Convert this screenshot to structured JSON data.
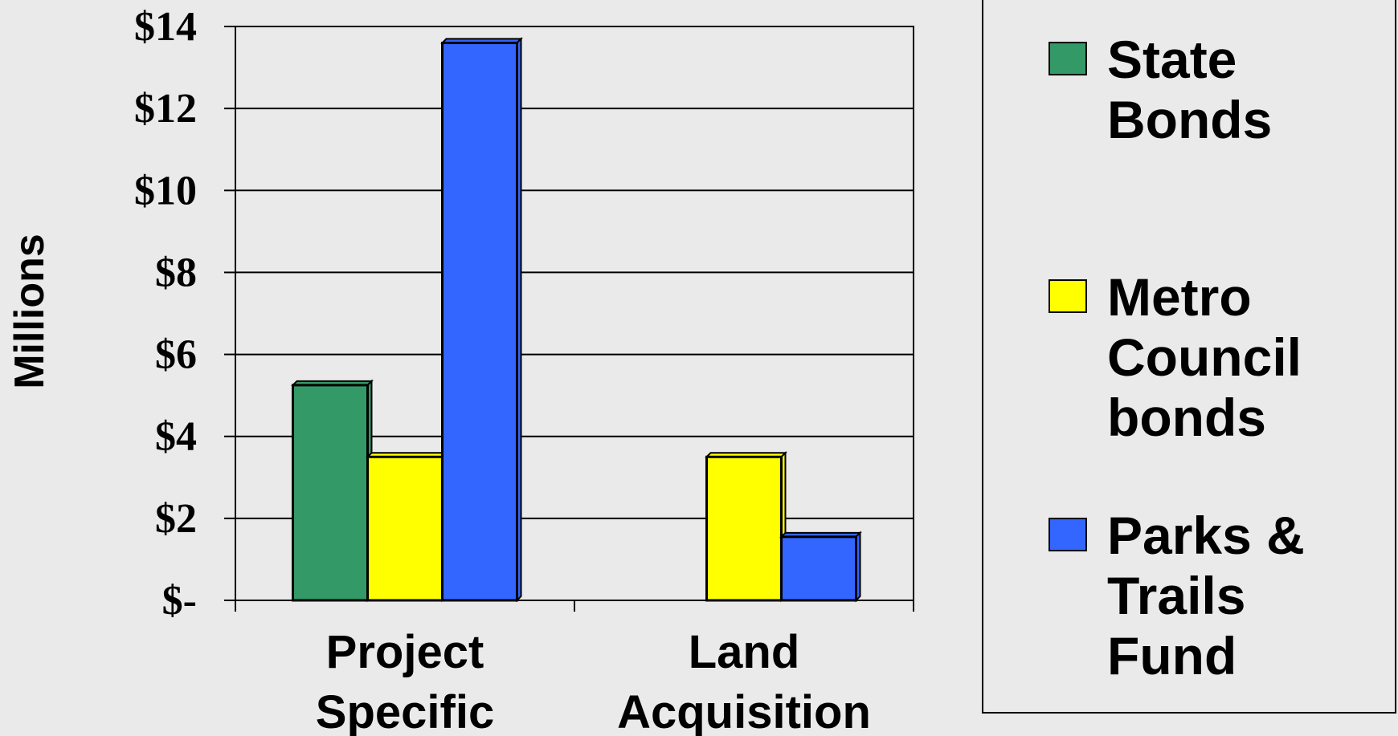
{
  "chart_data": {
    "type": "bar",
    "categories": [
      [
        "Project",
        "Specific"
      ],
      [
        "Land",
        "Acquisition"
      ]
    ],
    "series": [
      {
        "name": [
          "State",
          "Bonds"
        ],
        "values": [
          5.25,
          null
        ],
        "color": "#339966"
      },
      {
        "name": [
          "Metro",
          "Council",
          "bonds"
        ],
        "values": [
          3.5,
          3.5
        ],
        "color": "#FFFF00"
      },
      {
        "name": [
          "Parks &",
          "Trails",
          "Fund"
        ],
        "values": [
          13.6,
          1.55
        ],
        "color": "#3366FF"
      }
    ],
    "ylabel": "Millions",
    "ylim": [
      0,
      14
    ],
    "yticks": [
      {
        "value": 0,
        "label": "$-"
      },
      {
        "value": 2,
        "label": "$2"
      },
      {
        "value": 4,
        "label": "$4"
      },
      {
        "value": 6,
        "label": "$6"
      },
      {
        "value": 8,
        "label": "$8"
      },
      {
        "value": 10,
        "label": "$10"
      },
      {
        "value": 12,
        "label": "$12"
      },
      {
        "value": 14,
        "label": "$14"
      }
    ],
    "grid": true,
    "legend_position": "right"
  },
  "colors": {
    "background": "#EAEAEA",
    "axis": "#000000",
    "bar_outline": "#000000"
  }
}
